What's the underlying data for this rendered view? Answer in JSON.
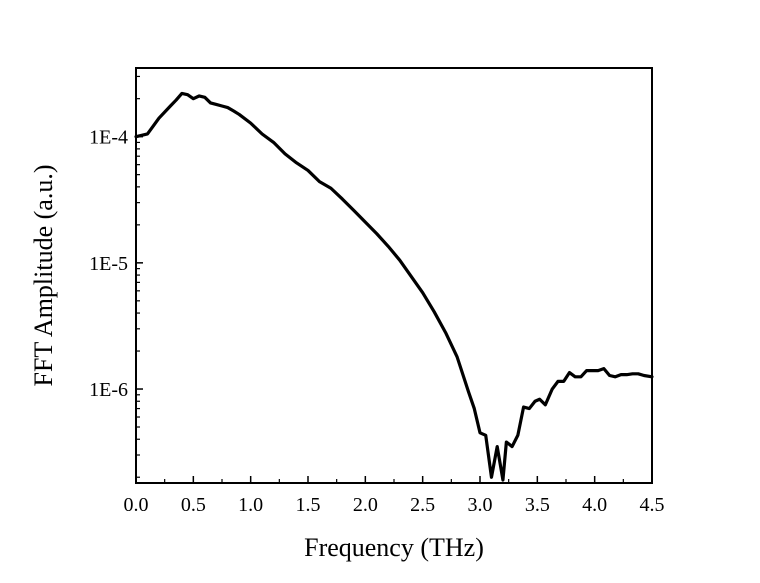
{
  "chart_data": {
    "type": "line",
    "title": "",
    "xlabel": "Frequency (THz)",
    "ylabel": "FFT Amplitude (a.u.)",
    "xlim": [
      0.0,
      4.5
    ],
    "ylim": [
      1.8e-07,
      0.00035
    ],
    "yscale": "log",
    "grid": false,
    "legend": "none",
    "x_ticks": [
      {
        "value": 0.0,
        "label": "0.0"
      },
      {
        "value": 0.5,
        "label": "0.5"
      },
      {
        "value": 1.0,
        "label": "1.0"
      },
      {
        "value": 1.5,
        "label": "1.5"
      },
      {
        "value": 2.0,
        "label": "2.0"
      },
      {
        "value": 2.5,
        "label": "2.5"
      },
      {
        "value": 3.0,
        "label": "3.0"
      },
      {
        "value": 3.5,
        "label": "3.5"
      },
      {
        "value": 4.0,
        "label": "4.0"
      },
      {
        "value": 4.5,
        "label": "4.5"
      }
    ],
    "y_ticks": [
      {
        "value": 0.0001,
        "label": "1E-4"
      },
      {
        "value": 1e-05,
        "label": "1E-5"
      },
      {
        "value": 1e-06,
        "label": "1E-6"
      }
    ],
    "series": [
      {
        "color": "#000000",
        "x": [
          0.0,
          0.1,
          0.2,
          0.3,
          0.35,
          0.4,
          0.45,
          0.5,
          0.55,
          0.6,
          0.65,
          0.7,
          0.75,
          0.8,
          0.85,
          0.9,
          1.0,
          1.1,
          1.2,
          1.3,
          1.4,
          1.5,
          1.6,
          1.7,
          1.8,
          1.9,
          2.0,
          2.1,
          2.2,
          2.3,
          2.4,
          2.5,
          2.6,
          2.7,
          2.8,
          2.9,
          2.95,
          3.0,
          3.05,
          3.1,
          3.15,
          3.2,
          3.23,
          3.28,
          3.33,
          3.38,
          3.43,
          3.48,
          3.52,
          3.57,
          3.63,
          3.68,
          3.73,
          3.78,
          3.83,
          3.88,
          3.93,
          3.98,
          4.03,
          4.08,
          4.13,
          4.18,
          4.23,
          4.28,
          4.33,
          4.38,
          4.43,
          4.5
        ],
        "y": [
          0.0001,
          0.000105,
          0.00014,
          0.000175,
          0.000195,
          0.00022,
          0.000215,
          0.0002,
          0.00021,
          0.000205,
          0.000185,
          0.00018,
          0.000175,
          0.00017,
          0.00016,
          0.00015,
          0.000128,
          0.000105,
          9e-05,
          7.3e-05,
          6.2e-05,
          5.4e-05,
          4.4e-05,
          3.9e-05,
          3.2e-05,
          2.6e-05,
          2.1e-05,
          1.7e-05,
          1.35e-05,
          1.05e-05,
          7.8e-06,
          5.8e-06,
          4.1e-06,
          2.8e-06,
          1.8e-06,
          9.5e-07,
          7e-07,
          4.5e-07,
          4.3e-07,
          2e-07,
          3.5e-07,
          1.9e-07,
          3.8e-07,
          3.5e-07,
          4.3e-07,
          7.2e-07,
          7e-07,
          8e-07,
          8.3e-07,
          7.5e-07,
          1e-06,
          1.15e-06,
          1.15e-06,
          1.35e-06,
          1.25e-06,
          1.25e-06,
          1.4e-06,
          1.4e-06,
          1.4e-06,
          1.45e-06,
          1.28e-06,
          1.25e-06,
          1.3e-06,
          1.3e-06,
          1.32e-06,
          1.32e-06,
          1.28e-06,
          1.25e-06
        ]
      }
    ]
  }
}
